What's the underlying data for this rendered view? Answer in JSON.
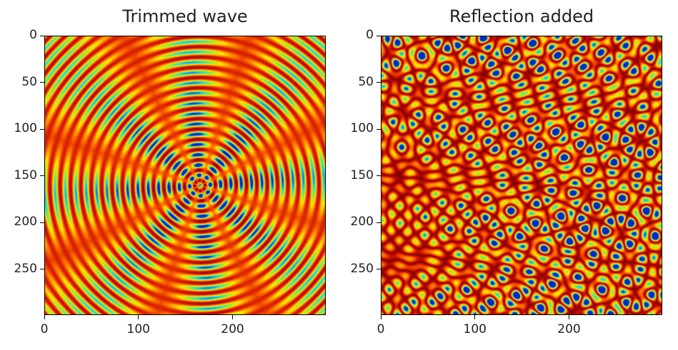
{
  "chart_data": [
    {
      "type": "heatmap",
      "title": "Trimmed wave",
      "xlim": [
        0,
        299
      ],
      "ylim": [
        299,
        0
      ],
      "x_ticks": [
        0,
        100,
        200
      ],
      "y_ticks": [
        0,
        50,
        100,
        150,
        200,
        250
      ],
      "x_tick_labels": [
        "0",
        "100",
        "200"
      ],
      "y_tick_labels": [
        "0",
        "50",
        "100",
        "150",
        "200",
        "250"
      ],
      "colormap": "jet-red-yellow",
      "pattern": {
        "kind": "radial-wave",
        "center": [
          165,
          160
        ],
        "spokes": 8,
        "ring_period": 11
      }
    },
    {
      "type": "heatmap",
      "title": "Reflection added",
      "xlim": [
        0,
        299
      ],
      "ylim": [
        299,
        0
      ],
      "x_ticks": [
        0,
        100,
        200
      ],
      "y_ticks": [
        0,
        50,
        100,
        150,
        200,
        250
      ],
      "x_tick_labels": [
        "0",
        "100",
        "200"
      ],
      "y_tick_labels": [
        "0",
        "50",
        "100",
        "150",
        "200",
        "250"
      ],
      "colormap": "jet-red-yellow",
      "pattern": {
        "kind": "interference",
        "spot_period": 18
      }
    }
  ]
}
